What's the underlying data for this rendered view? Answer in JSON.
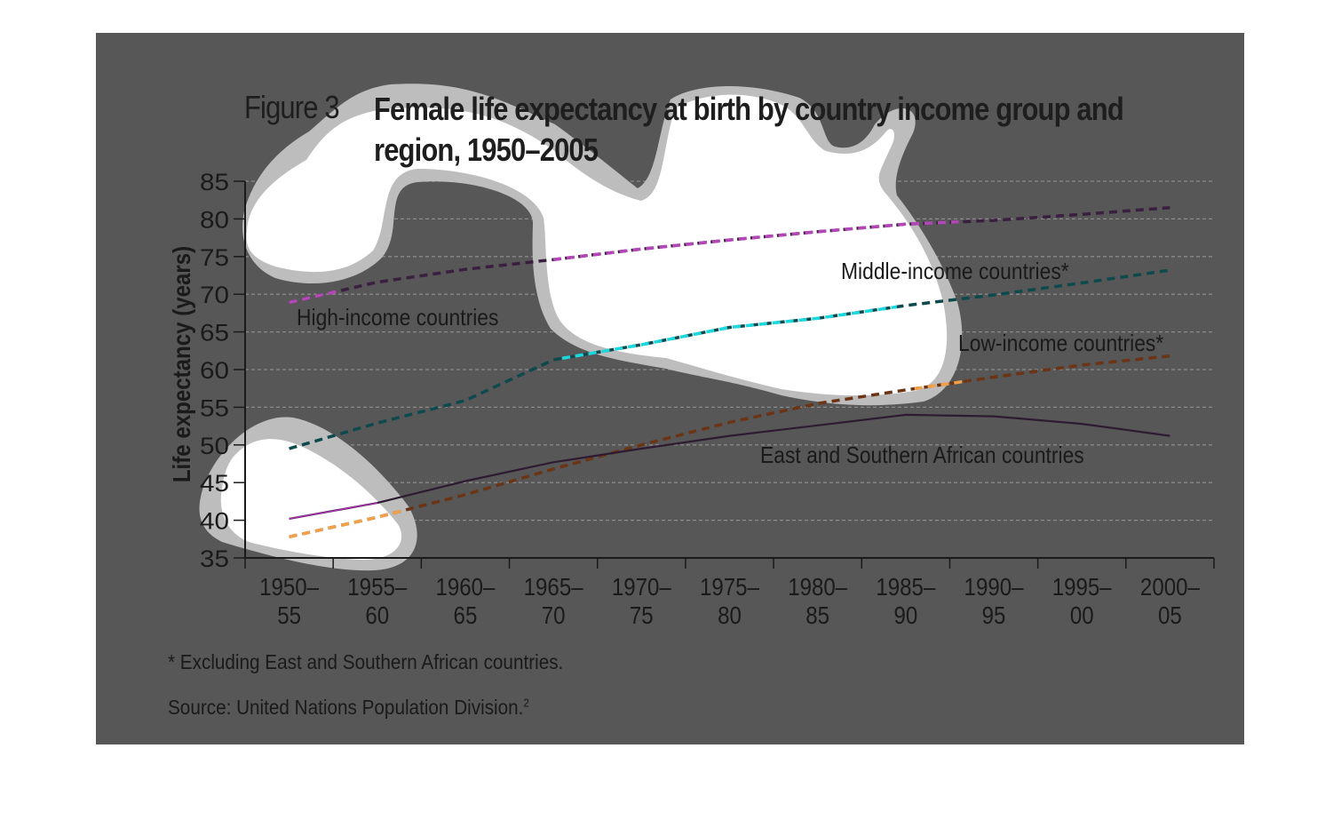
{
  "figure": {
    "label": "Figure 3",
    "title": "Female life expectancy at birth by country income group and region, 1950–2005",
    "footnote": "* Excluding East and Southern African countries.",
    "source": "Source: United Nations Population Division.",
    "source_sup": "2"
  },
  "colors": {
    "panel": "#575757",
    "highlight": "#ffffff",
    "highlight_border": "#bdbdbd",
    "high_income": "#3a1f40",
    "high_income_highlight": "#b447b8",
    "middle_income": "#0e4a4d",
    "middle_income_highlight": "#1ad8dd",
    "low_income": "#6b3414",
    "low_income_highlight": "#f2a14a",
    "east_southern_africa": "#2e1a33",
    "east_southern_africa_highlight": "#a830ac"
  },
  "chart_data": {
    "type": "line",
    "ylabel": "Life expectancy (years)",
    "xlabel": "",
    "ylim": [
      35,
      85
    ],
    "yticks": [
      35,
      40,
      45,
      50,
      55,
      60,
      65,
      70,
      75,
      80,
      85
    ],
    "grid": true,
    "categories": [
      "1950–55",
      "1955–60",
      "1960–65",
      "1965–70",
      "1970–75",
      "1975–80",
      "1980–85",
      "1985–90",
      "1990–95",
      "1995–00",
      "2000–05"
    ],
    "category_lines": [
      [
        "1950–",
        "55"
      ],
      [
        "1955–",
        "60"
      ],
      [
        "1960–",
        "65"
      ],
      [
        "1965–",
        "70"
      ],
      [
        "1970–",
        "75"
      ],
      [
        "1975–",
        "80"
      ],
      [
        "1980–",
        "85"
      ],
      [
        "1985–",
        "90"
      ],
      [
        "1990–",
        "95"
      ],
      [
        "1995–",
        "00"
      ],
      [
        "2000–",
        "05"
      ]
    ],
    "series": [
      {
        "key": "high_income",
        "name": "High-income countries",
        "style": "dashed",
        "values": [
          68.9,
          71.6,
          73.3,
          74.6,
          76.0,
          77.2,
          78.3,
          79.3,
          79.8,
          80.6,
          81.5
        ]
      },
      {
        "key": "middle_income",
        "name": "Middle-income countries*",
        "style": "dashed",
        "values": [
          49.5,
          52.9,
          55.9,
          61.3,
          63.3,
          65.6,
          66.8,
          68.5,
          69.9,
          71.5,
          73.2
        ]
      },
      {
        "key": "low_income",
        "name": "Low-income countries*",
        "style": "dashed",
        "values": [
          37.8,
          40.4,
          43.4,
          46.8,
          50.0,
          53.0,
          55.5,
          57.3,
          59.0,
          60.6,
          61.8
        ]
      },
      {
        "key": "east_southern_africa",
        "name": "East and Southern African countries",
        "style": "solid",
        "values": [
          40.2,
          42.3,
          45.2,
          47.7,
          49.5,
          51.2,
          52.6,
          54.0,
          53.8,
          52.8,
          51.2
        ]
      }
    ]
  }
}
